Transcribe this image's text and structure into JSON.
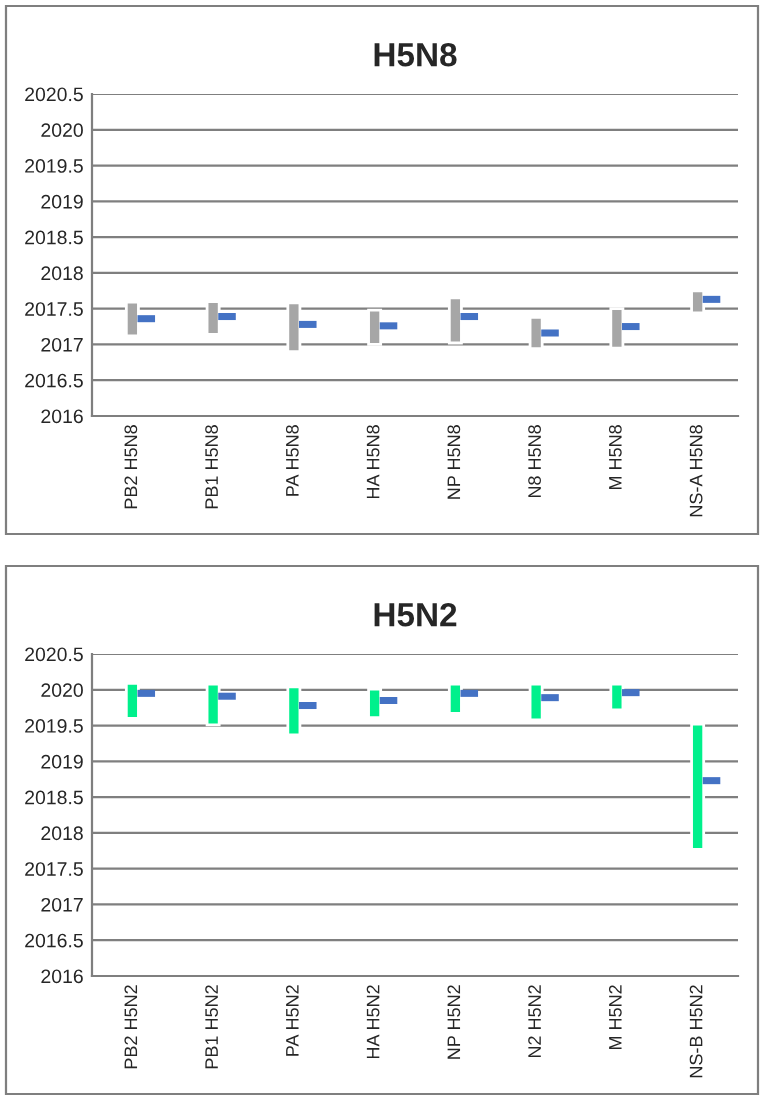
{
  "chart_data": [
    {
      "type": "bar",
      "title": "H5N8",
      "categories": [
        "PB2 H5N8",
        "PB1 H5N8",
        "PA H5N8",
        "HA H5N8",
        "NP H5N8",
        "N8 H5N8",
        "M H5N8",
        "NS-A H5N8"
      ],
      "series": [
        {
          "color": "#a6a6a6",
          "base": [
            2017.12,
            2017.14,
            2016.9,
            2017.0,
            2017.02,
            2016.94,
            2016.95,
            2017.44
          ],
          "values": [
            0.47,
            0.46,
            0.68,
            0.48,
            0.63,
            0.44,
            0.55,
            0.31
          ]
        },
        {
          "type": "scatter",
          "color": "#4472c4",
          "marker": "square",
          "x": [
            "PB2 H5N8",
            "PB1 H5N8",
            "PA H5N8",
            "HA H5N8",
            "NP H5N8",
            "N8 H5N8",
            "M H5N8",
            "NS-A H5N8"
          ],
          "values": [
            2017.36,
            2017.39,
            2017.28,
            2017.26,
            2017.39,
            2017.16,
            2017.25,
            2017.63
          ]
        }
      ],
      "ylim": [
        2016,
        2020.5
      ],
      "yticks": [
        2016,
        2016.5,
        2017,
        2017.5,
        2018,
        2018.5,
        2019,
        2019.5,
        2020,
        2020.5
      ],
      "grid": "y",
      "legend": false
    },
    {
      "type": "bar",
      "title": "H5N2",
      "categories": [
        "PB2 H5N2",
        "PB1 H5N2",
        "PA H5N2",
        "HA H5N2",
        "NP H5N2",
        "N2 H5N2",
        "M H5N2",
        "NS-B H5N2"
      ],
      "series": [
        {
          "color": "#00f08c",
          "base": [
            2019.6,
            2019.51,
            2019.37,
            2019.61,
            2019.67,
            2019.58,
            2019.72,
            2017.77
          ],
          "values": [
            0.49,
            0.57,
            0.67,
            0.4,
            0.41,
            0.5,
            0.36,
            1.75
          ]
        },
        {
          "type": "scatter",
          "color": "#4472c4",
          "marker": "square",
          "x": [
            "PB2 H5N2",
            "PB1 H5N2",
            "PA H5N2",
            "HA H5N2",
            "NP H5N2",
            "N2 H5N2",
            "M H5N2",
            "NS-B H5N2"
          ],
          "values": [
            2019.95,
            2019.91,
            2019.78,
            2019.85,
            2019.95,
            2019.89,
            2019.96,
            2018.73
          ]
        }
      ],
      "ylim": [
        2016,
        2020.5
      ],
      "yticks": [
        2016,
        2016.5,
        2017,
        2017.5,
        2018,
        2018.5,
        2019,
        2019.5,
        2020,
        2020.5
      ],
      "grid": "y",
      "legend": false
    }
  ]
}
